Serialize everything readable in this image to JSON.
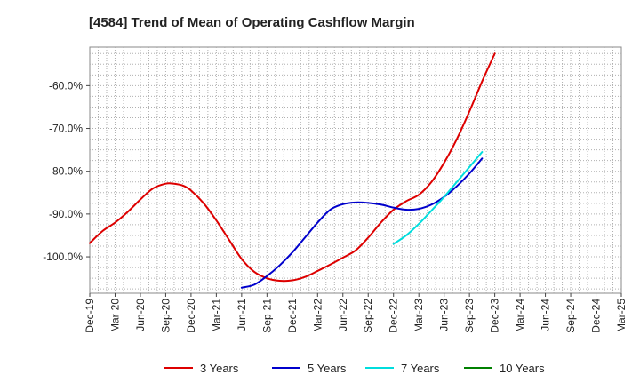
{
  "chart_data": {
    "type": "line",
    "title": "[4584]  Trend of Mean of Operating Cashflow Margin",
    "xlabel": "",
    "ylabel": "",
    "ylim": [
      -108.5,
      -51
    ],
    "yticks": [
      -60,
      -70,
      -80,
      -90,
      -100
    ],
    "ytick_labels": [
      "-60.0%",
      "-70.0%",
      "-80.0%",
      "-90.0%",
      "-100.0%"
    ],
    "categories": [
      "Dec-19",
      "Mar-20",
      "Jun-20",
      "Sep-20",
      "Dec-20",
      "Mar-21",
      "Jun-21",
      "Sep-21",
      "Dec-21",
      "Mar-22",
      "Jun-22",
      "Sep-22",
      "Dec-22",
      "Mar-23",
      "Jun-23",
      "Sep-23",
      "Dec-23",
      "Mar-24",
      "Jun-24",
      "Sep-24",
      "Dec-24",
      "Mar-25"
    ],
    "grid": true,
    "legend_position": "bottom",
    "series": [
      {
        "name": "3 Years",
        "color": "#dd0000",
        "points": [
          [
            0,
            -96.8
          ],
          [
            0.5,
            -94
          ],
          [
            1,
            -92
          ],
          [
            1.5,
            -89.5
          ],
          [
            2,
            -86.6
          ],
          [
            2.5,
            -84
          ],
          [
            3,
            -82.9
          ],
          [
            3.3,
            -82.9
          ],
          [
            3.7,
            -83.4
          ],
          [
            4,
            -84.5
          ],
          [
            4.5,
            -87.5
          ],
          [
            5,
            -91.5
          ],
          [
            5.5,
            -96
          ],
          [
            6,
            -100.5
          ],
          [
            6.5,
            -103.5
          ],
          [
            7,
            -105
          ],
          [
            7.5,
            -105.6
          ],
          [
            8,
            -105.5
          ],
          [
            8.5,
            -104.7
          ],
          [
            9,
            -103.3
          ],
          [
            9.5,
            -101.8
          ],
          [
            10,
            -100.2
          ],
          [
            10.5,
            -98.5
          ],
          [
            11,
            -95.5
          ],
          [
            11.5,
            -92
          ],
          [
            12,
            -89
          ],
          [
            12.5,
            -87
          ],
          [
            13,
            -85.5
          ],
          [
            13.5,
            -82.5
          ],
          [
            14,
            -78
          ],
          [
            14.5,
            -72.5
          ],
          [
            15,
            -66
          ],
          [
            15.5,
            -59
          ],
          [
            16,
            -52.5
          ]
        ]
      },
      {
        "name": "5 Years",
        "color": "#0000cc",
        "points": [
          [
            6,
            -107.2
          ],
          [
            6.5,
            -106.5
          ],
          [
            7,
            -104.5
          ],
          [
            7.5,
            -102
          ],
          [
            8,
            -99
          ],
          [
            8.5,
            -95.5
          ],
          [
            9,
            -92
          ],
          [
            9.5,
            -89
          ],
          [
            10,
            -87.7
          ],
          [
            10.5,
            -87.3
          ],
          [
            11,
            -87.4
          ],
          [
            11.5,
            -87.8
          ],
          [
            12,
            -88.5
          ],
          [
            12.5,
            -89
          ],
          [
            13,
            -88.8
          ],
          [
            13.5,
            -87.8
          ],
          [
            14,
            -86
          ],
          [
            14.5,
            -83.5
          ],
          [
            15,
            -80.5
          ],
          [
            15.5,
            -77
          ]
        ]
      },
      {
        "name": "7 Years",
        "color": "#00dddd",
        "points": [
          [
            12,
            -97
          ],
          [
            12.5,
            -95
          ],
          [
            13,
            -92.3
          ],
          [
            13.5,
            -89.2
          ],
          [
            14,
            -86
          ],
          [
            14.5,
            -82.5
          ],
          [
            15,
            -79
          ],
          [
            15.5,
            -75.5
          ]
        ]
      },
      {
        "name": "10 Years",
        "color": "#008000",
        "points": []
      }
    ]
  }
}
